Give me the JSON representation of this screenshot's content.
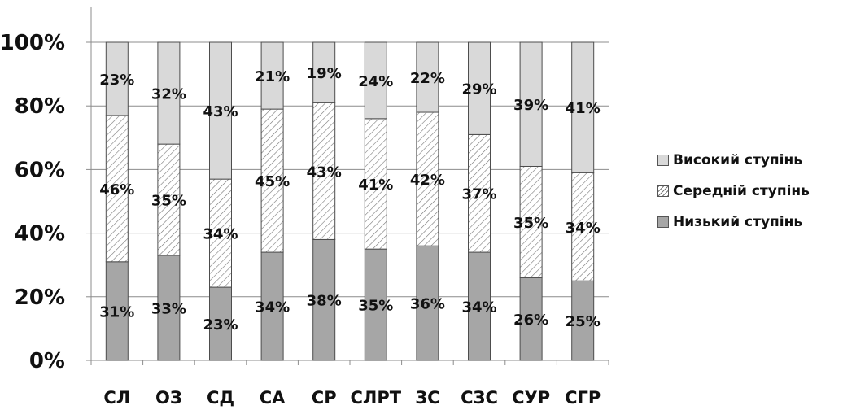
{
  "chart_data": {
    "type": "bar",
    "stacked": true,
    "categories": [
      "СЛ",
      "ОЗ",
      "СД",
      "СА",
      "СР",
      "СЛРТ",
      "ЗС",
      "СЗС",
      "СУР",
      "СГР"
    ],
    "series": [
      {
        "name": "Низький ступінь",
        "values": [
          31,
          33,
          23,
          34,
          38,
          35,
          36,
          34,
          26,
          25
        ],
        "color": "#a6a6a6",
        "fill": "solid"
      },
      {
        "name": "Середній ступінь",
        "values": [
          46,
          35,
          34,
          45,
          43,
          41,
          42,
          37,
          35,
          34
        ],
        "color": "#ffffff",
        "fill": "diagonal-hatch"
      },
      {
        "name": "Високий ступінь",
        "values": [
          23,
          32,
          43,
          21,
          19,
          24,
          22,
          29,
          39,
          41
        ],
        "color": "#d9d9d9",
        "fill": "solid"
      }
    ],
    "data_labels": [
      [
        "31%",
        "33%",
        "23%",
        "34%",
        "38%",
        "35%",
        "36%",
        "34%",
        "26%",
        "25%"
      ],
      [
        "46%",
        "35%",
        "34%",
        "45%",
        "43%",
        "41%",
        "42%",
        "37%",
        "35%",
        "34%"
      ],
      [
        "23%",
        "32%",
        "43%",
        "21%",
        "19%",
        "24%",
        "22%",
        "29%",
        "39%",
        "41%"
      ]
    ],
    "y_ticks": [
      0,
      20,
      40,
      60,
      80,
      100
    ],
    "y_tick_labels": [
      "0%",
      "20%",
      "40%",
      "60%",
      "80%",
      "100%"
    ],
    "ylim": [
      0,
      100
    ],
    "grid": true,
    "legend_position": "right",
    "legend_order": [
      "Високий ступінь",
      "Середній ступінь",
      "Низький ступінь"
    ],
    "title": "",
    "xlabel": "",
    "ylabel": ""
  }
}
